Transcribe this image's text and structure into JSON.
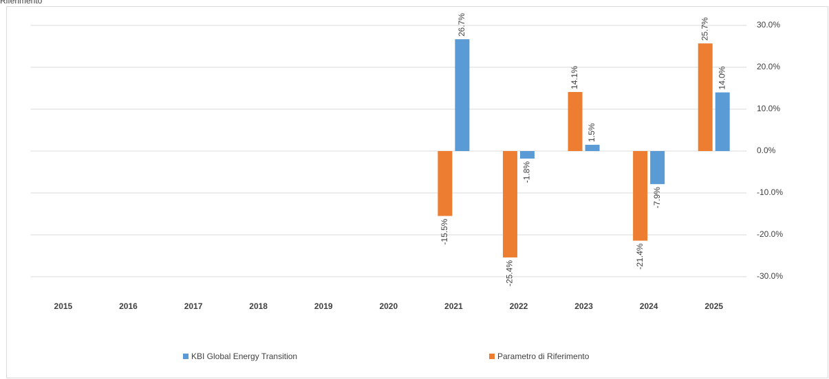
{
  "chart_data": {
    "type": "bar",
    "title": "Riferimento",
    "categories": [
      "2015",
      "2016",
      "2017",
      "2018",
      "2019",
      "2020",
      "2021",
      "2022",
      "2023",
      "2024",
      "2025"
    ],
    "series": [
      {
        "name": "KBI Global Energy Transition",
        "color": "#5b9bd5",
        "values": [
          null,
          null,
          null,
          null,
          null,
          null,
          26.7,
          -1.8,
          1.5,
          -7.9,
          14.0
        ],
        "value_labels": [
          null,
          null,
          null,
          null,
          null,
          null,
          "26.7%",
          "-1.8%",
          "1.5%",
          "-7.9%",
          "14.0%"
        ]
      },
      {
        "name": "Parametro di Riferimento",
        "color": "#ed7d31",
        "values": [
          null,
          null,
          null,
          null,
          null,
          null,
          -15.5,
          -25.4,
          14.1,
          -21.4,
          25.7
        ],
        "value_labels": [
          null,
          null,
          null,
          null,
          null,
          null,
          "-15.5%",
          "-25.4%",
          "14.1%",
          "-21.4%",
          "25.7%"
        ]
      }
    ],
    "ylim": [
      -30,
      30
    ],
    "yticks": [
      {
        "value": -30,
        "label": "-30.0%"
      },
      {
        "value": -20,
        "label": "-20.0%"
      },
      {
        "value": -10,
        "label": "-10.0%"
      },
      {
        "value": 0,
        "label": "0.0%"
      },
      {
        "value": 10,
        "label": "10.0%"
      },
      {
        "value": 20,
        "label": "20.0%"
      },
      {
        "value": 30,
        "label": "30.0%"
      }
    ],
    "grid": true,
    "legend": "bottom"
  }
}
